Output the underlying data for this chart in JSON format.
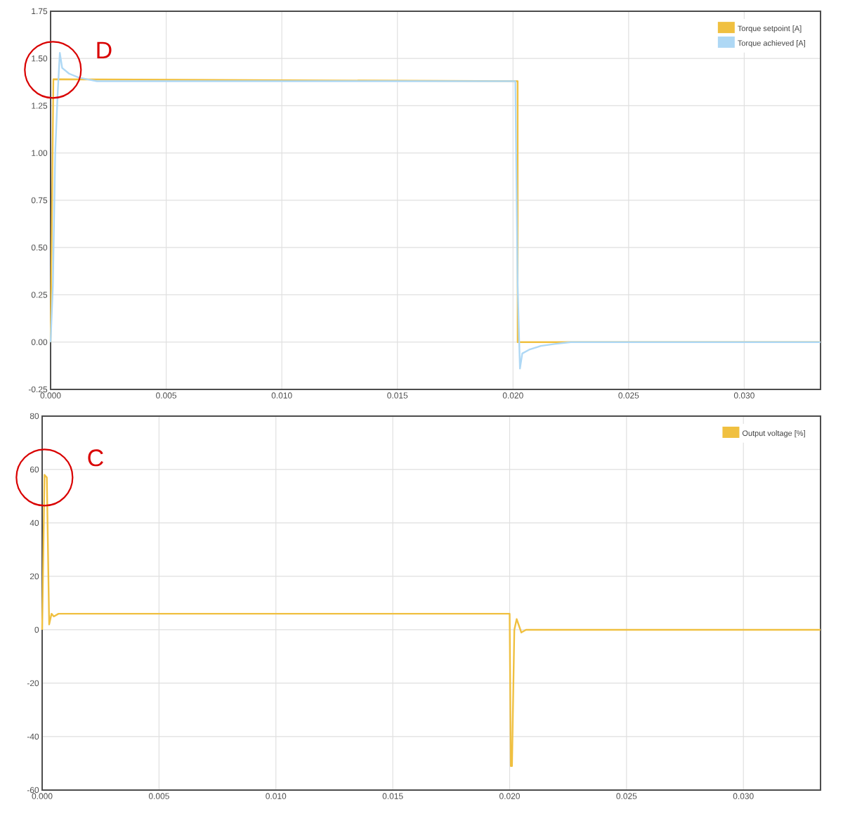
{
  "chart_data": [
    {
      "type": "line",
      "x": [
        0,
        0.00012,
        0.0202,
        0.0202,
        0.0333
      ],
      "xlim": [
        0,
        0.0333
      ],
      "xticks": [
        {
          "value": 0,
          "label": "0.000"
        },
        {
          "value": 0.005,
          "label": "0.005"
        },
        {
          "value": 0.01,
          "label": "0.010"
        },
        {
          "value": 0.015,
          "label": "0.015"
        },
        {
          "value": 0.02,
          "label": "0.020"
        },
        {
          "value": 0.025,
          "label": "0.025"
        },
        {
          "value": 0.03,
          "label": "0.030"
        }
      ],
      "ylim": [
        -0.25,
        1.75
      ],
      "yticks": [
        {
          "value": -0.25,
          "label": "-0.25"
        },
        {
          "value": 0,
          "label": "0.00"
        },
        {
          "value": 0.25,
          "label": "0.25"
        },
        {
          "value": 0.5,
          "label": "0.50"
        },
        {
          "value": 0.75,
          "label": "0.75"
        },
        {
          "value": 1,
          "label": "1.00"
        },
        {
          "value": 1.25,
          "label": "1.25"
        },
        {
          "value": 1.5,
          "label": "1.50"
        },
        {
          "value": 1.75,
          "label": "1.75"
        }
      ],
      "grid": true,
      "legend": "top right",
      "marker": "none",
      "series": [
        {
          "name": "Torque setpoint [A]",
          "color": "#f0c040",
          "values": [
            0,
            1.39,
            1.38,
            0,
            0
          ]
        },
        {
          "name": "Torque achieved [A]",
          "color": "#aed8f5",
          "x": [
            0,
            0.0001,
            0.0002,
            0.0003,
            0.0004,
            0.0005,
            0.0008,
            0.0012,
            0.0016,
            0.002,
            0.005,
            0.01,
            0.015,
            0.0201,
            0.0202,
            0.0203,
            0.0204,
            0.0207,
            0.0212,
            0.0218,
            0.0225,
            0.03,
            0.0333
          ],
          "values": [
            0,
            0.3,
            1.0,
            1.3,
            1.53,
            1.45,
            1.42,
            1.4,
            1.39,
            1.38,
            1.38,
            1.38,
            1.38,
            1.38,
            0.3,
            -0.14,
            -0.06,
            -0.04,
            -0.02,
            -0.01,
            0,
            0,
            0
          ]
        }
      ],
      "annotations": [
        {
          "text": "D",
          "x": 0.0001,
          "y": 1.44
        }
      ]
    },
    {
      "type": "line",
      "x": [
        0,
        0.0001,
        0.0002,
        0.0003,
        0.0004,
        0.0005,
        0.0007,
        0.001,
        0.005,
        0.01,
        0.015,
        0.02,
        0.02005,
        0.0201,
        0.0202,
        0.0203,
        0.0205,
        0.0207,
        0.025,
        0.03,
        0.0333
      ],
      "xlim": [
        0,
        0.0333
      ],
      "xticks": [
        {
          "value": 0,
          "label": "0.000"
        },
        {
          "value": 0.005,
          "label": "0.005"
        },
        {
          "value": 0.01,
          "label": "0.010"
        },
        {
          "value": 0.015,
          "label": "0.015"
        },
        {
          "value": 0.02,
          "label": "0.020"
        },
        {
          "value": 0.025,
          "label": "0.025"
        },
        {
          "value": 0.03,
          "label": "0.030"
        }
      ],
      "ylim": [
        -60,
        80
      ],
      "yticks": [
        -60,
        -40,
        -20,
        0,
        20,
        40,
        60,
        80
      ],
      "grid": true,
      "legend": "top right",
      "marker": "none",
      "series": [
        {
          "name": "Output voltage [%]",
          "color": "#f0c040",
          "values": [
            0,
            58,
            57,
            2,
            6,
            5,
            6,
            6,
            6,
            6,
            6,
            6,
            -51,
            -51,
            0,
            4,
            -1,
            0,
            0,
            0,
            0
          ]
        }
      ],
      "annotations": [
        {
          "text": "C",
          "x": 0.0001,
          "y": 57
        }
      ]
    }
  ]
}
